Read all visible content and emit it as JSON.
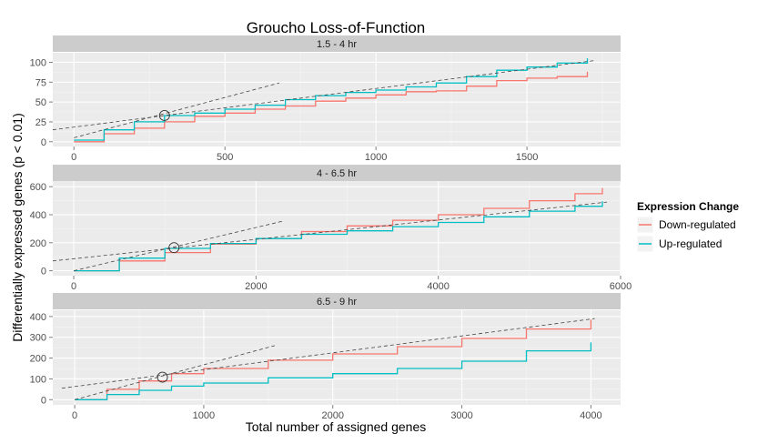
{
  "title": "Groucho Loss-of-Function",
  "xlabel": "Total number of assigned genes",
  "ylabel": "Differentially expressed genes (p < 0.01)",
  "legend": {
    "title": "Expression Change",
    "placement": "right",
    "items": [
      {
        "label": "Down-regulated",
        "color": "#F8766D"
      },
      {
        "label": "Up-regulated",
        "color": "#00BFC4"
      }
    ]
  },
  "colors": {
    "down": "#F8766D",
    "up": "#00BFC4",
    "panel_bg": "#ebebeb",
    "strip_bg": "#cccccc",
    "dashed": "#444444"
  },
  "chart_data": [
    {
      "type": "line",
      "strip": "1.5 - 4 hr",
      "xlim": [
        -70,
        1810
      ],
      "ylim": [
        -6,
        112
      ],
      "xticks": [
        0,
        500,
        1000,
        1500
      ],
      "yticks": [
        0,
        25,
        50,
        75,
        100
      ],
      "grid": true,
      "series": [
        {
          "name": "Down-regulated",
          "color": "#F8766D",
          "x": [
            0,
            100,
            200,
            300,
            400,
            500,
            600,
            700,
            800,
            900,
            1000,
            1100,
            1200,
            1300,
            1400,
            1500,
            1600,
            1700
          ],
          "y": [
            0,
            10,
            17,
            25,
            32,
            36,
            41,
            45,
            51,
            55,
            59,
            63,
            64,
            70,
            77,
            80,
            82,
            88
          ]
        },
        {
          "name": "Up-regulated",
          "color": "#00BFC4",
          "x": [
            0,
            100,
            200,
            300,
            400,
            500,
            600,
            700,
            800,
            900,
            1000,
            1100,
            1200,
            1300,
            1400,
            1500,
            1600,
            1700
          ],
          "y": [
            2,
            15,
            25,
            33,
            36,
            41,
            46,
            53,
            58,
            62,
            65,
            69,
            74,
            82,
            90,
            94,
            99,
            105
          ]
        }
      ],
      "fit_lines": [
        {
          "x": [
            -70,
            1720
          ],
          "y": [
            15,
            102
          ]
        },
        {
          "x": [
            0,
            680
          ],
          "y": [
            5,
            74
          ]
        }
      ],
      "circle": {
        "x": 300,
        "y": 33
      }
    },
    {
      "type": "line",
      "strip": "4 - 6.5 hr",
      "xlim": [
        -230,
        6000
      ],
      "ylim": [
        -35,
        640
      ],
      "xticks": [
        0,
        2000,
        4000,
        6000
      ],
      "yticks": [
        0,
        200,
        400,
        600
      ],
      "grid": true,
      "series": [
        {
          "name": "Down-regulated",
          "color": "#F8766D",
          "x": [
            0,
            500,
            1000,
            1500,
            2000,
            2500,
            3000,
            3500,
            4000,
            4500,
            5000,
            5500,
            5800
          ],
          "y": [
            0,
            70,
            130,
            190,
            230,
            280,
            320,
            360,
            400,
            445,
            500,
            550,
            590
          ]
        },
        {
          "name": "Up-regulated",
          "color": "#00BFC4",
          "x": [
            0,
            500,
            1000,
            1500,
            2000,
            2500,
            3000,
            3500,
            4000,
            4500,
            5000,
            5500,
            5800
          ],
          "y": [
            0,
            90,
            160,
            195,
            230,
            260,
            285,
            315,
            345,
            385,
            425,
            460,
            495
          ]
        }
      ],
      "fit_lines": [
        {
          "x": [
            -230,
            5850
          ],
          "y": [
            70,
            490
          ]
        },
        {
          "x": [
            0,
            2300
          ],
          "y": [
            0,
            355
          ]
        }
      ],
      "circle": {
        "x": 1100,
        "y": 165
      }
    },
    {
      "type": "line",
      "strip": "6.5 - 9 hr",
      "xlim": [
        -170,
        4230
      ],
      "ylim": [
        -25,
        430
      ],
      "xticks": [
        0,
        1000,
        2000,
        3000,
        4000
      ],
      "yticks": [
        0,
        100,
        200,
        300,
        400
      ],
      "grid": true,
      "series": [
        {
          "name": "Down-regulated",
          "color": "#F8766D",
          "x": [
            0,
            250,
            500,
            750,
            1000,
            1500,
            2000,
            2500,
            3000,
            3500,
            4000
          ],
          "y": [
            0,
            50,
            90,
            125,
            150,
            190,
            220,
            255,
            295,
            340,
            385
          ]
        },
        {
          "name": "Up-regulated",
          "color": "#00BFC4",
          "x": [
            0,
            250,
            500,
            750,
            1000,
            1500,
            2000,
            2500,
            3000,
            3500,
            4000
          ],
          "y": [
            0,
            25,
            45,
            65,
            80,
            105,
            125,
            150,
            185,
            235,
            275
          ]
        }
      ],
      "fit_lines": [
        {
          "x": [
            -100,
            4030
          ],
          "y": [
            55,
            390
          ]
        },
        {
          "x": [
            0,
            1550
          ],
          "y": [
            0,
            260
          ]
        }
      ],
      "circle": {
        "x": 680,
        "y": 108
      }
    }
  ]
}
